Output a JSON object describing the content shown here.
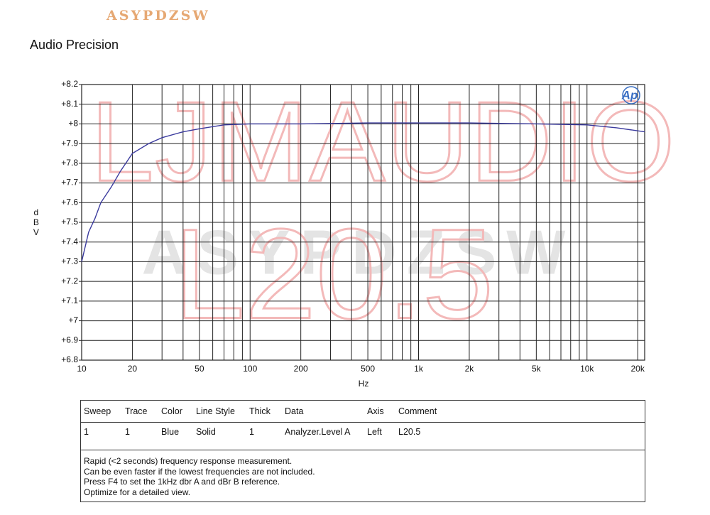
{
  "header": {
    "brand": "ASYPDZSW",
    "title": "Audio Precision"
  },
  "chart_data": {
    "type": "line",
    "xlabel": "Hz",
    "ylabel": "dBV",
    "logo_text": "Ap",
    "watermarks": [
      "LJMAUDIO",
      "ASYPDZSW",
      "L20.5"
    ],
    "xscale": "log",
    "grid": true,
    "x": [
      10,
      11,
      12,
      13,
      15,
      17,
      20,
      25,
      30,
      40,
      50,
      70,
      100,
      200,
      500,
      1000,
      2000,
      5000,
      10000,
      15000,
      22000
    ],
    "series": [
      {
        "color": "#3b3b9e",
        "values": [
          7.3,
          7.45,
          7.52,
          7.6,
          7.68,
          7.76,
          7.85,
          7.9,
          7.93,
          7.96,
          7.975,
          7.995,
          8.0,
          8.0,
          8.005,
          8.005,
          8.005,
          8.0,
          7.995,
          7.98,
          7.96
        ]
      }
    ],
    "xlim": [
      10,
      22000
    ],
    "xticks": [
      10,
      20,
      50,
      100,
      200,
      500,
      {
        "value": 1000,
        "label": "1k"
      },
      {
        "value": 2000,
        "label": "2k"
      },
      {
        "value": 5000,
        "label": "5k"
      },
      {
        "value": 10000,
        "label": "10k"
      },
      {
        "value": 20000,
        "label": "20k"
      }
    ],
    "ylim": [
      6.8,
      8.2
    ],
    "yticks": [
      {
        "value": 6.8,
        "label": "+6.8"
      },
      {
        "value": 6.9,
        "label": "+6.9"
      },
      {
        "value": 7,
        "label": "+7"
      },
      {
        "value": 7.1,
        "label": "+7.1"
      },
      {
        "value": 7.2,
        "label": "+7.2"
      },
      {
        "value": 7.3,
        "label": "+7.3"
      },
      {
        "value": 7.4,
        "label": "+7.4"
      },
      {
        "value": 7.5,
        "label": "+7.5"
      },
      {
        "value": 7.6,
        "label": "+7.6"
      },
      {
        "value": 7.7,
        "label": "+7.7"
      },
      {
        "value": 7.8,
        "label": "+7.8"
      },
      {
        "value": 7.9,
        "label": "+7.9"
      },
      {
        "value": 8,
        "label": "+8"
      },
      {
        "value": 8.1,
        "label": "+8.1"
      },
      {
        "value": 8.2,
        "label": "+8.2"
      }
    ]
  },
  "legend_table": {
    "columns": [
      "Sweep",
      "Trace",
      "Color",
      "Line Style",
      "Thick",
      "Data",
      "Axis",
      "Comment"
    ],
    "rows": [
      [
        1,
        1,
        "Blue",
        "Solid",
        1,
        "Analyzer.Level A",
        "Left",
        "L20.5"
      ]
    ]
  },
  "notes": [
    "Rapid (<2 seconds) frequency response measurement.",
    "Can be even faster if the lowest frequencies are not included.",
    "Press F4 to set the 1kHz dbr A and dBr B reference.",
    "Optimize for a detailed view."
  ]
}
